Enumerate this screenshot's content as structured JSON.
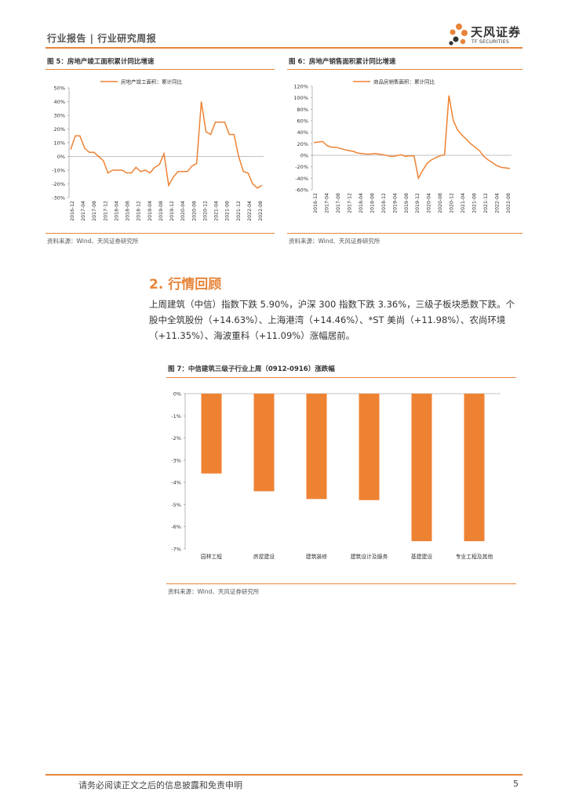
{
  "header": {
    "breadcrumb": "行业报告 | 行业研究周报",
    "logo_cn": "天风证券",
    "logo_en": "TF SECURITIES"
  },
  "figure5": {
    "title": "图 5：房地产竣工面积累计同比增速",
    "source": "资料来源：Wind、天风证券研究所"
  },
  "figure6": {
    "title": "图 6：房地产销售面积累计同比增速",
    "source": "资料来源：Wind、天风证券研究所"
  },
  "section": {
    "title": "2. 行情回顾",
    "paragraph": "上周建筑（中信）指数下跌 5.90%，沪深 300 指数下跌 3.36%，三级子板块悉数下跌。个股中全筑股份（+14.63%）、上海港湾（+14.46%）、*ST 美尚（+11.98%）、农尚环境（+11.35%）、海波重科（+11.09%）涨幅居前。"
  },
  "figure7": {
    "title": "图 7：中信建筑三级子行业上周（0912-0916）涨跌幅",
    "source": "资料来源：Wind、天风证券研究所"
  },
  "footer": {
    "disclaimer": "请务必阅读正文之后的信息披露和免责申明",
    "page_number": "5"
  },
  "colors": {
    "accent": "#e8843a",
    "bar": "#ee8233"
  },
  "chart_data": [
    {
      "type": "line",
      "title": "房地产竣工面积累计同比增速",
      "series": [
        {
          "name": "房地产竣工面积：累计同比",
          "values": [
            5,
            15,
            15,
            6,
            3,
            3,
            0,
            -3,
            -12,
            -10,
            -10,
            -10,
            -12,
            -12,
            -8,
            -11,
            -10,
            -12,
            -8,
            -6,
            2,
            -21,
            -15,
            -11,
            -11,
            -11,
            -7,
            -5,
            40,
            18,
            16,
            25,
            25,
            25,
            16,
            16,
            0,
            -11,
            -12,
            -20,
            -23,
            -21
          ]
        }
      ],
      "xticks": [
        "2016-12",
        "2017-04",
        "2017-08",
        "2017-12",
        "2018-04",
        "2018-08",
        "2018-12",
        "2019-04",
        "2019-08",
        "2019-12",
        "2020-04",
        "2020-08",
        "2020-12",
        "2021-04",
        "2021-08",
        "2021-12",
        "2022-04",
        "2022-08"
      ],
      "yticks": [
        "50%",
        "40%",
        "30%",
        "20%",
        "10%",
        "0%",
        "-10%",
        "-20%",
        "-30%"
      ],
      "ylim": [
        -30,
        50
      ]
    },
    {
      "type": "line",
      "title": "房地产销售面积累计同比增速",
      "series": [
        {
          "name": "商品房销售面积：累计同比",
          "values": [
            22,
            23,
            24,
            17,
            14,
            14,
            12,
            10,
            8,
            7,
            4,
            3,
            2,
            2,
            3,
            2,
            1,
            -1,
            -2,
            -1,
            1,
            -2,
            -1,
            -1,
            -40,
            -26,
            -14,
            -8,
            -4,
            -1,
            1,
            104,
            60,
            44,
            35,
            28,
            20,
            14,
            8,
            -2,
            -8,
            -13,
            -18,
            -21,
            -22,
            -23
          ]
        }
      ],
      "xticks": [
        "2016-12",
        "2017-04",
        "2017-08",
        "2017-12",
        "2018-04",
        "2018-08",
        "2018-12",
        "2019-04",
        "2019-08",
        "2019-12",
        "2020-04",
        "2020-08",
        "2020-12",
        "2021-04",
        "2021-08",
        "2021-12",
        "2022-04",
        "2022-08"
      ],
      "yticks": [
        "120%",
        "100%",
        "80%",
        "60%",
        "40%",
        "20%",
        "0%",
        "-20%",
        "-40%",
        "-60%"
      ],
      "ylim": [
        -60,
        120
      ]
    },
    {
      "type": "bar",
      "title": "中信建筑三级子行业上周（0912-0916）涨跌幅",
      "categories": [
        "园林工程",
        "房屋建设",
        "建筑装修",
        "建筑设计及服务",
        "基建建设",
        "专业工程及其他"
      ],
      "values": [
        -3.6,
        -4.4,
        -4.75,
        -4.8,
        -6.65,
        -6.65
      ],
      "yticks": [
        "0%",
        "-1%",
        "-2%",
        "-3%",
        "-4%",
        "-5%",
        "-6%",
        "-7%"
      ],
      "ylim": [
        -7,
        0
      ]
    }
  ]
}
